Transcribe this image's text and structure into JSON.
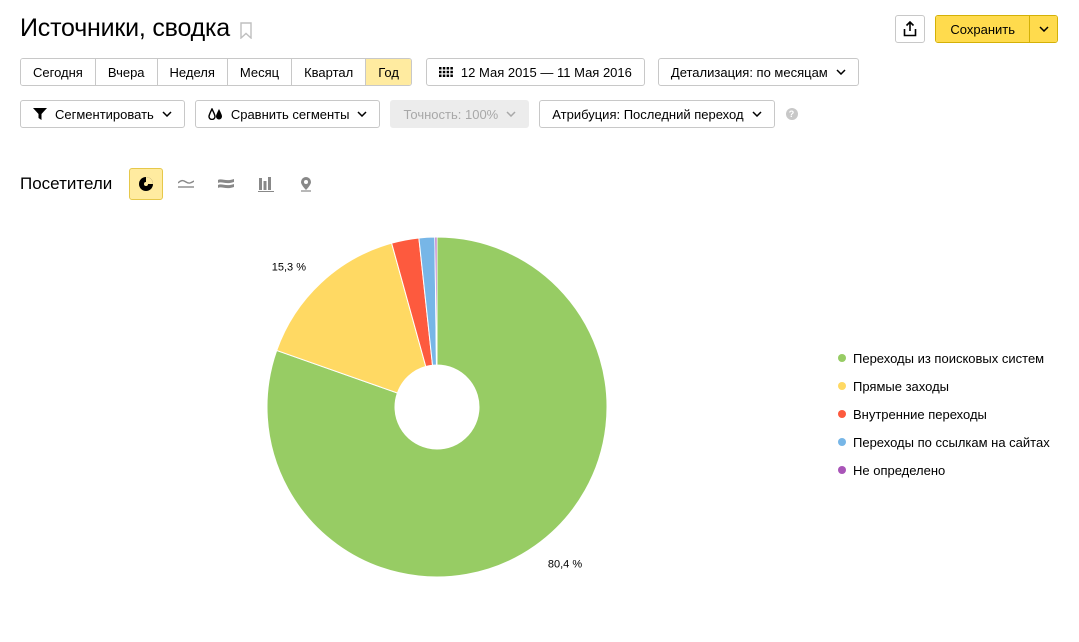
{
  "header": {
    "title": "Источники, сводка",
    "save_label": "Сохранить"
  },
  "periods": [
    {
      "label": "Сегодня",
      "active": false
    },
    {
      "label": "Вчера",
      "active": false
    },
    {
      "label": "Неделя",
      "active": false
    },
    {
      "label": "Месяц",
      "active": false
    },
    {
      "label": "Квартал",
      "active": false
    },
    {
      "label": "Год",
      "active": true
    }
  ],
  "date_range": "12 Мая 2015 — 11 Мая 2016",
  "detail": "Детализация: по месяцам",
  "filters": {
    "segment": "Сегментировать",
    "compare": "Сравнить сегменты",
    "accuracy": "Точность: 100%",
    "attribution": "Атрибуция: Последний переход",
    "help": "?"
  },
  "metric": {
    "label": "Посетители",
    "views": [
      "pie-icon",
      "line-icon",
      "area-icon",
      "bar-icon",
      "map-icon"
    ],
    "active_view": "pie-icon"
  },
  "colors": {
    "accent": "#ffdb4d",
    "active_tab": "#ffeba0"
  },
  "chart_data": {
    "type": "pie",
    "donut": true,
    "series": [
      {
        "name": "Переходы из поисковых систем",
        "value": 80.4,
        "color": "#97cc64",
        "label": "80,4 %"
      },
      {
        "name": "Прямые заходы",
        "value": 15.3,
        "color": "#ffd963",
        "label": "15,3 %"
      },
      {
        "name": "Внутренние переходы",
        "value": 2.6,
        "color": "#fd5a3e",
        "label": ""
      },
      {
        "name": "Переходы по ссылкам на сайтах",
        "value": 1.5,
        "color": "#77b6e7",
        "label": ""
      },
      {
        "name": "Не определено",
        "value": 0.2,
        "color": "#a955b8",
        "label": ""
      }
    ],
    "legend": "right"
  }
}
